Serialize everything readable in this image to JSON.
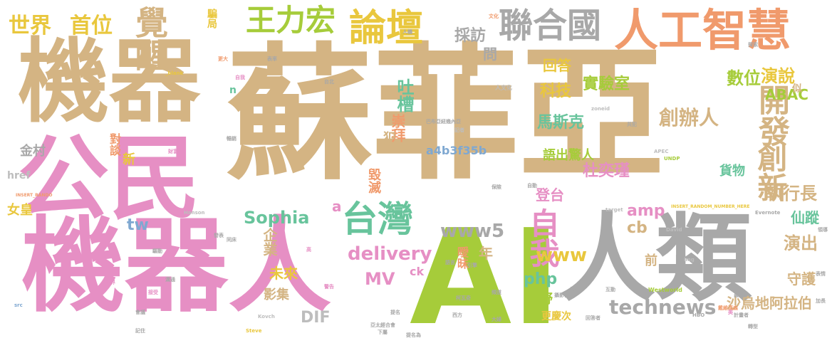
{
  "colors": {
    "tan": "#d4b483",
    "pink": "#e68fc4",
    "gray": "#a8a8a8",
    "green": "#a6cc3a",
    "orange": "#f09a6c",
    "yellow": "#e9c73d",
    "teal": "#68c49c",
    "blue": "#7fa8d1",
    "lightgray": "#bdbdbd"
  },
  "words": [
    {
      "text": "蘇菲亞"
    },
    {
      "text": "機器"
    },
    {
      "text": "公民"
    },
    {
      "text": "機器人"
    },
    {
      "text": "AI"
    },
    {
      "text": "人類"
    },
    {
      "text": "人工智慧"
    },
    {
      "text": "論壇"
    },
    {
      "text": "聯合國"
    },
    {
      "text": "王力宏"
    },
    {
      "text": "覺醒"
    },
    {
      "text": "世界"
    },
    {
      "text": "首位"
    },
    {
      "text": "騙局"
    },
    {
      "text": "採訪"
    },
    {
      "text": "問"
    },
    {
      "text": "回答"
    },
    {
      "text": "台灣"
    },
    {
      "text": "自我"
    },
    {
      "text": "數位"
    },
    {
      "text": "演說"
    },
    {
      "text": "ABAC"
    },
    {
      "text": "開發"
    },
    {
      "text": "創新"
    },
    {
      "text": "吐槽"
    },
    {
      "text": "科技"
    },
    {
      "text": "實驗室"
    },
    {
      "text": "崇拜"
    },
    {
      "text": "馬斯克"
    },
    {
      "text": "創辦人"
    },
    {
      "text": "犯"
    },
    {
      "text": "a4b3f35b"
    },
    {
      "text": "語出驚人"
    },
    {
      "text": "杜奕瑾"
    },
    {
      "text": "貨物"
    },
    {
      "text": "執行長"
    },
    {
      "text": "仙蹤"
    },
    {
      "text": "毀滅"
    },
    {
      "text": "登台"
    },
    {
      "text": "Sophia"
    },
    {
      "text": "www5"
    },
    {
      "text": "amp"
    },
    {
      "text": "cb"
    },
    {
      "text": "企業"
    },
    {
      "text": "delivery"
    },
    {
      "text": "MV"
    },
    {
      "text": "www"
    },
    {
      "text": "php"
    },
    {
      "text": "曖昧"
    },
    {
      "text": "年"
    },
    {
      "text": "未來"
    },
    {
      "text": "影集"
    },
    {
      "text": "DIF"
    },
    {
      "text": "technews"
    },
    {
      "text": "綠野"
    },
    {
      "text": "更慶次"
    },
    {
      "text": "前"
    },
    {
      "text": "演出"
    },
    {
      "text": "守護"
    },
    {
      "text": "沙烏地阿拉伯"
    },
    {
      "text": "女皇"
    },
    {
      "text": "tw"
    },
    {
      "text": "金村"
    },
    {
      "text": "對談"
    },
    {
      "text": "新"
    },
    {
      "text": "href"
    },
    {
      "text": "a"
    },
    {
      "text": "ck"
    },
    {
      "text": "n"
    },
    {
      "text": "似"
    },
    {
      "text": "人文化"
    },
    {
      "text": "巴布亞紐幾內亞"
    },
    {
      "text": "記者"
    },
    {
      "text": "APEC"
    },
    {
      "text": "UNDP"
    },
    {
      "text": "Evernote"
    },
    {
      "text": "Hanson"
    },
    {
      "text": "Westworld"
    },
    {
      "text": "HBO"
    },
    {
      "text": "Kovch"
    },
    {
      "text": "Steve"
    },
    {
      "text": "David"
    },
    {
      "text": "target"
    },
    {
      "text": "src"
    },
    {
      "text": "img"
    },
    {
      "text": "_blank"
    },
    {
      "text": "INSERT_RANDOM_NUMBER_HERE"
    },
    {
      "text": "INSERT_RANDO"
    },
    {
      "text": "zoneid"
    },
    {
      "text": "台北"
    },
    {
      "text": "亞太經合會"
    },
    {
      "text": "下屬"
    },
    {
      "text": "提名為"
    },
    {
      "text": "發表"
    },
    {
      "text": "攝影機"
    },
    {
      "text": "互動"
    },
    {
      "text": "共犯"
    },
    {
      "text": "戴維漢森"
    },
    {
      "text": "計畫者"
    },
    {
      "text": "最近"
    },
    {
      "text": "工作"
    },
    {
      "text": "表情"
    },
    {
      "text": "探索"
    },
    {
      "text": "加長"
    },
    {
      "text": "美"
    },
    {
      "text": "人機"
    },
    {
      "text": "文化"
    },
    {
      "text": "表率"
    },
    {
      "text": "世界"
    },
    {
      "text": "溝通"
    },
    {
      "text": "保險"
    },
    {
      "text": "接受"
    },
    {
      "text": "更大"
    },
    {
      "text": "自動"
    },
    {
      "text": "自我"
    },
    {
      "text": "暢銷"
    },
    {
      "text": "高"
    },
    {
      "text": "記住"
    },
    {
      "text": "會議"
    },
    {
      "text": "驅動"
    },
    {
      "text": "同床"
    },
    {
      "text": "大婦"
    },
    {
      "text": "西方"
    },
    {
      "text": "柯瓦奇"
    },
    {
      "text": "語言"
    },
    {
      "text": "警告"
    },
    {
      "text": "頻道"
    },
    {
      "text": "提名"
    },
    {
      "text": "引擎"
    },
    {
      "text": "持續"
    },
    {
      "text": "轉型"
    },
    {
      "text": "財富"
    },
    {
      "text": "領導"
    },
    {
      "text": "回答者"
    }
  ]
}
